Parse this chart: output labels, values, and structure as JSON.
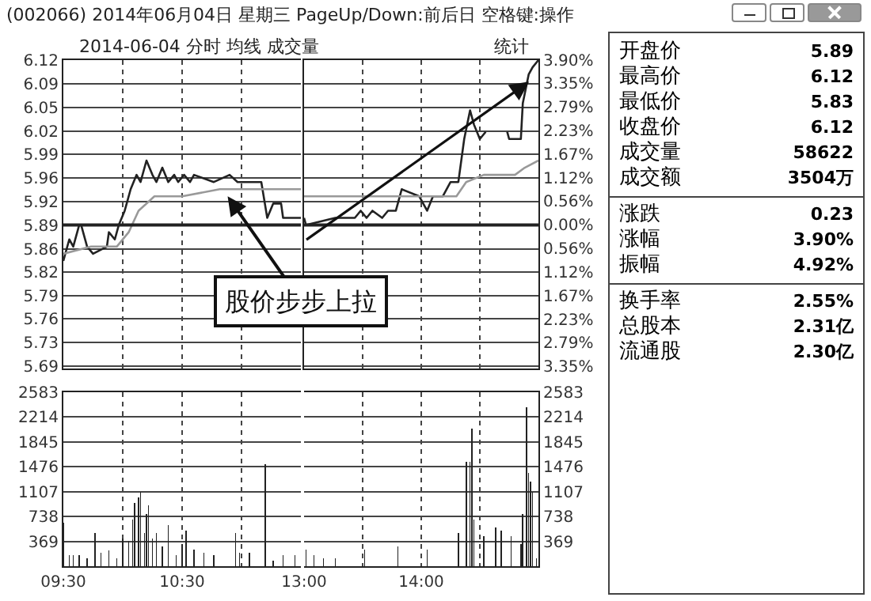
{
  "chart_data": [
    {
      "type": "line",
      "title": "(002066) 2014年06月04日 星期三 PageUp/Down:前后日 空格键:操作",
      "subtitle": "2014-06-04 分时 均线 成交量",
      "series": [
        {
          "color": "#222222",
          "x": [
            "2014-06-04T09:30",
            "2014-06-04T09:33",
            "2014-06-04T09:35",
            "2014-06-04T09:38",
            "2014-06-04T09:39",
            "2014-06-04T09:42",
            "2014-06-04T09:45",
            "2014-06-04T09:52",
            "2014-06-04T09:53",
            "2014-06-04T09:56",
            "2014-06-04T09:58",
            "2014-06-04T10:01",
            "2014-06-04T10:04",
            "2014-06-04T10:07",
            "2014-06-04T10:09",
            "2014-06-04T10:12",
            "2014-06-04T10:15",
            "2014-06-04T10:17",
            "2014-06-04T10:20",
            "2014-06-04T10:23",
            "2014-06-04T10:26",
            "2014-06-04T10:28",
            "2014-06-04T10:31",
            "2014-06-04T10:34",
            "2014-06-04T10:36",
            "2014-06-04T10:46",
            "2014-06-04T10:54",
            "2014-06-04T10:58",
            "2014-06-04T11:10",
            "2014-06-04T11:13",
            "2014-06-04T11:16",
            "2014-06-04T11:20",
            "2014-06-04T11:21",
            "2014-06-04T11:30"
          ],
          "values": [
            5.84,
            5.87,
            5.86,
            5.89,
            5.89,
            5.86,
            5.85,
            5.86,
            5.88,
            5.87,
            5.89,
            5.91,
            5.94,
            5.96,
            5.95,
            5.98,
            5.96,
            5.95,
            5.97,
            5.95,
            5.96,
            5.95,
            5.96,
            5.95,
            5.96,
            5.95,
            5.96,
            5.95,
            5.95,
            5.9,
            5.92,
            5.92,
            5.9,
            5.9
          ]
        },
        {
          "color": "#999999",
          "x": [
            "2014-06-04T09:30",
            "2014-06-04T09:44",
            "2014-06-04T09:57",
            "2014-06-04T10:03",
            "2014-06-04T10:08",
            "2014-06-04T10:16",
            "2014-06-04T10:30",
            "2014-06-04T10:49",
            "2014-06-04T11:10",
            "2014-06-04T11:30"
          ],
          "values": [
            5.85,
            5.86,
            5.86,
            5.88,
            5.91,
            5.93,
            5.93,
            5.94,
            5.94,
            5.94
          ]
        }
      ],
      "xlim": [
        "2014-06-04T09:30",
        "2014-06-04T11:30"
      ],
      "xticks": [
        {
          "value": "2014-06-04T10:00",
          "label": null
        },
        {
          "value": "2014-06-04T10:30",
          "label": null
        },
        {
          "value": "2014-06-04T11:00",
          "label": null
        }
      ],
      "ylim": [
        5.69,
        6.12
      ],
      "yticks": [
        {
          "value": 6.12,
          "label": "6.12"
        },
        {
          "value": 6.087,
          "label": "6.09"
        },
        {
          "value": 6.054,
          "label": "6.05"
        },
        {
          "value": 6.021,
          "label": "6.02"
        },
        {
          "value": 5.989,
          "label": "5.99"
        },
        {
          "value": 5.956,
          "label": "5.96"
        },
        {
          "value": 5.923,
          "label": "5.92"
        },
        {
          "value": 5.89,
          "label": "5.89"
        },
        {
          "value": 5.857,
          "label": "5.86"
        },
        {
          "value": 5.824,
          "label": "5.82"
        },
        {
          "value": 5.791,
          "label": "5.79"
        },
        {
          "value": 5.759,
          "label": "5.76"
        },
        {
          "value": 5.726,
          "label": "5.73"
        },
        {
          "value": 5.693,
          "label": "5.69"
        }
      ],
      "grid": true,
      "tick_labels": "y",
      "ref_lines": [
        {
          "axis": "y",
          "value": 5.89,
          "color": "#222222"
        }
      ],
      "annotations": [
        {
          "text": "股价步步上拉",
          "x": "2014-06-04T10:53",
          "y": 5.93
        }
      ]
    },
    {
      "type": "line",
      "series": [
        {
          "color": "#222222",
          "x": [
            "2014-06-04T13:00",
            "2014-06-04T13:01",
            "2014-06-04T13:16",
            "2014-06-04T13:26",
            "2014-06-04T13:29",
            "2014-06-04T13:32",
            "2014-06-04T13:35",
            "2014-06-04T13:40",
            "2014-06-04T13:43",
            "2014-06-04T13:47",
            "2014-06-04T13:50",
            "2014-06-04T13:59",
            "2014-06-04T14:03",
            "2014-06-04T14:06",
            "2014-06-04T14:11",
            "2014-06-04T14:15",
            "2014-06-04T14:19",
            "2014-06-04T14:22",
            "2014-06-04T14:25",
            "2014-06-04T14:27",
            "2014-06-04T14:30",
            "2014-06-04T14:33",
            "2014-06-04T14:35",
            "2014-06-04T14:44",
            "2014-06-04T14:45",
            "2014-06-04T14:51",
            "2014-06-04T14:52",
            "2014-06-04T14:55",
            "2014-06-04T14:57",
            "2014-06-04T15:00"
          ],
          "values": [
            5.9,
            5.89,
            5.9,
            5.9,
            5.91,
            5.9,
            5.91,
            5.9,
            5.91,
            5.91,
            5.94,
            5.93,
            5.91,
            5.93,
            5.93,
            5.95,
            5.95,
            6.01,
            6.05,
            6.03,
            6.01,
            6.02,
            null,
            6.02,
            6.01,
            6.01,
            6.06,
            6.1,
            6.11,
            6.12
          ]
        },
        {
          "color": "#999999",
          "x": [
            "2014-06-04T13:00",
            "2014-06-04T13:29",
            "2014-06-04T13:56",
            "2014-06-04T14:18",
            "2014-06-04T14:23",
            "2014-06-04T14:32",
            "2014-06-04T14:40",
            "2014-06-04T14:42",
            "2014-06-04T14:48",
            "2014-06-04T14:53",
            "2014-06-04T15:00"
          ],
          "values": [
            5.93,
            5.93,
            5.93,
            5.93,
            5.95,
            5.96,
            5.96,
            5.96,
            5.96,
            5.97,
            5.98
          ]
        }
      ],
      "xlim": [
        "2014-06-04T13:00",
        "2014-06-04T15:00"
      ],
      "xticks": [
        {
          "value": "2014-06-04T13:30",
          "label": null
        },
        {
          "value": "2014-06-04T14:00",
          "label": null
        },
        {
          "value": "2014-06-04T14:30",
          "label": null
        }
      ],
      "ylim": [
        5.69,
        6.12
      ],
      "yticks": [
        {
          "value": 6.12,
          "label": null
        },
        {
          "value": 6.087,
          "label": null
        },
        {
          "value": 6.054,
          "label": null
        },
        {
          "value": 6.021,
          "label": null
        },
        {
          "value": 5.989,
          "label": null
        },
        {
          "value": 5.956,
          "label": null
        },
        {
          "value": 5.923,
          "label": null
        },
        {
          "value": 5.89,
          "label": null
        },
        {
          "value": 5.857,
          "label": null
        },
        {
          "value": 5.824,
          "label": null
        },
        {
          "value": 5.791,
          "label": null
        },
        {
          "value": 5.759,
          "label": null
        },
        {
          "value": 5.726,
          "label": null
        },
        {
          "value": 5.693,
          "label": null
        }
      ],
      "y2lim": [
        -3.4,
        3.9
      ],
      "y2ticks": [
        {
          "value": 3.9,
          "label": "3.90%"
        },
        {
          "value": 3.35,
          "label": "3.35%"
        },
        {
          "value": 2.79,
          "label": "2.79%"
        },
        {
          "value": 2.23,
          "label": "2.23%"
        },
        {
          "value": 1.67,
          "label": "1.67%"
        },
        {
          "value": 1.12,
          "label": "1.12%"
        },
        {
          "value": 0.56,
          "label": "0.56%"
        },
        {
          "value": 0,
          "label": "0.00%"
        },
        {
          "value": -0.56,
          "label": "0.56%"
        },
        {
          "value": -1.12,
          "label": "1.12%"
        },
        {
          "value": -1.67,
          "label": "1.67%"
        },
        {
          "value": -2.23,
          "label": "2.23%"
        },
        {
          "value": -2.79,
          "label": "2.79%"
        },
        {
          "value": -3.35,
          "label": "3.35%"
        }
      ],
      "grid": true,
      "tick_labels": false,
      "ref_lines": [
        {
          "axis": "y",
          "value": 5.89,
          "color": "#222222"
        }
      ],
      "annotations": [
        "统计"
      ]
    },
    {
      "type": "bar",
      "color": "#222222",
      "x": [
        "2014-06-04T09:30",
        "2014-06-04T09:33",
        "2014-06-04T09:35",
        "2014-06-04T09:38",
        "2014-06-04T09:42",
        "2014-06-04T09:46",
        "2014-06-04T09:49",
        "2014-06-04T09:53",
        "2014-06-04T09:57",
        "2014-06-04T10:00",
        "2014-06-04T10:03",
        "2014-06-04T10:05",
        "2014-06-04T10:06",
        "2014-06-04T10:08",
        "2014-06-04T10:09",
        "2014-06-04T10:11",
        "2014-06-04T10:12",
        "2014-06-04T10:13",
        "2014-06-04T10:15",
        "2014-06-04T10:17",
        "2014-06-04T10:20",
        "2014-06-04T10:23",
        "2014-06-04T10:27",
        "2014-06-04T10:30",
        "2014-06-04T10:32",
        "2014-06-04T10:36",
        "2014-06-04T10:41",
        "2014-06-04T10:46",
        "2014-06-04T10:57",
        "2014-06-04T10:59",
        "2014-06-04T11:04",
        "2014-06-04T11:12",
        "2014-06-04T11:16",
        "2014-06-04T11:21",
        "2014-06-04T11:27"
      ],
      "values": [
        650,
        160,
        160,
        160,
        120,
        490,
        200,
        240,
        120,
        410,
        370,
        690,
        940,
        1020,
        1100,
        490,
        770,
        900,
        410,
        490,
        290,
        610,
        160,
        330,
        530,
        250,
        200,
        160,
        490,
        200,
        200,
        1510,
        80,
        160,
        160
      ],
      "xlim": [
        "2014-06-04T09:30",
        "2014-06-04T11:30"
      ],
      "xticks": [
        {
          "value": "2014-06-04T09:30",
          "label": "09:30"
        },
        {
          "value": "2014-06-04T10:00",
          "label": null
        },
        {
          "value": "2014-06-04T10:30",
          "label": "10:30"
        },
        {
          "value": "2014-06-04T11:00",
          "label": null
        }
      ],
      "ylim": [
        0,
        2583
      ],
      "yticks": [
        369,
        738,
        1107,
        1476,
        1845,
        2214,
        2583
      ],
      "grid": true
    },
    {
      "type": "bar",
      "x": [
        "2014-06-04T13:01",
        "2014-06-04T13:05",
        "2014-06-04T13:10",
        "2014-06-04T13:16",
        "2014-06-04T13:31",
        "2014-06-04T13:48",
        "2014-06-04T14:03",
        "2014-06-04T14:19",
        "2014-06-04T14:23",
        "2014-06-04T14:25",
        "2014-06-04T14:26",
        "2014-06-04T14:27",
        "2014-06-04T14:32",
        "2014-06-04T14:38",
        "2014-06-04T14:41",
        "2014-06-04T14:46",
        "2014-06-04T14:51",
        "2014-06-04T14:52",
        "2014-06-04T14:54",
        "2014-06-04T14:55",
        "2014-06-04T14:56",
        "2014-06-04T14:57",
        "2014-06-04T14:59"
      ],
      "series": [
        {
          "color": "#222222",
          "axis": "y2",
          "values": [
            250,
            160,
            120,
            120,
            250,
            290,
            250,
            490,
            1550,
            1550,
            2040,
            690,
            450,
            570,
            530,
            450,
            330,
            770,
            2360,
            1390,
            1260,
            1100,
            120
          ]
        }
      ],
      "xlim": [
        "2014-06-04T13:00",
        "2014-06-04T15:00"
      ],
      "xticks": [
        {
          "value": "2014-06-04T13:00",
          "label": "13:00"
        },
        {
          "value": "2014-06-04T13:30",
          "label": null
        },
        {
          "value": "2014-06-04T14:00",
          "label": "14:00"
        },
        {
          "value": "2014-06-04T14:30",
          "label": null
        }
      ],
      "y2lim": [
        0,
        2583
      ],
      "y2ticks": [
        369,
        738,
        1107,
        1476,
        1845,
        2214,
        2583
      ],
      "grid": true
    },
    {
      "type": "other",
      "annotations": [
        "开盘价",
        "5.89",
        "最高价",
        "6.12",
        "最低价",
        "5.83",
        "收盘价",
        "6.12",
        "成交量",
        "58622",
        "成交额",
        "3504万",
        "涨跌",
        "0.23",
        "涨幅",
        "3.90%",
        "振幅",
        "4.92%",
        "换手率",
        "2.55%",
        "总股本",
        "2.31亿",
        "流通股",
        "2.30亿"
      ]
    }
  ]
}
